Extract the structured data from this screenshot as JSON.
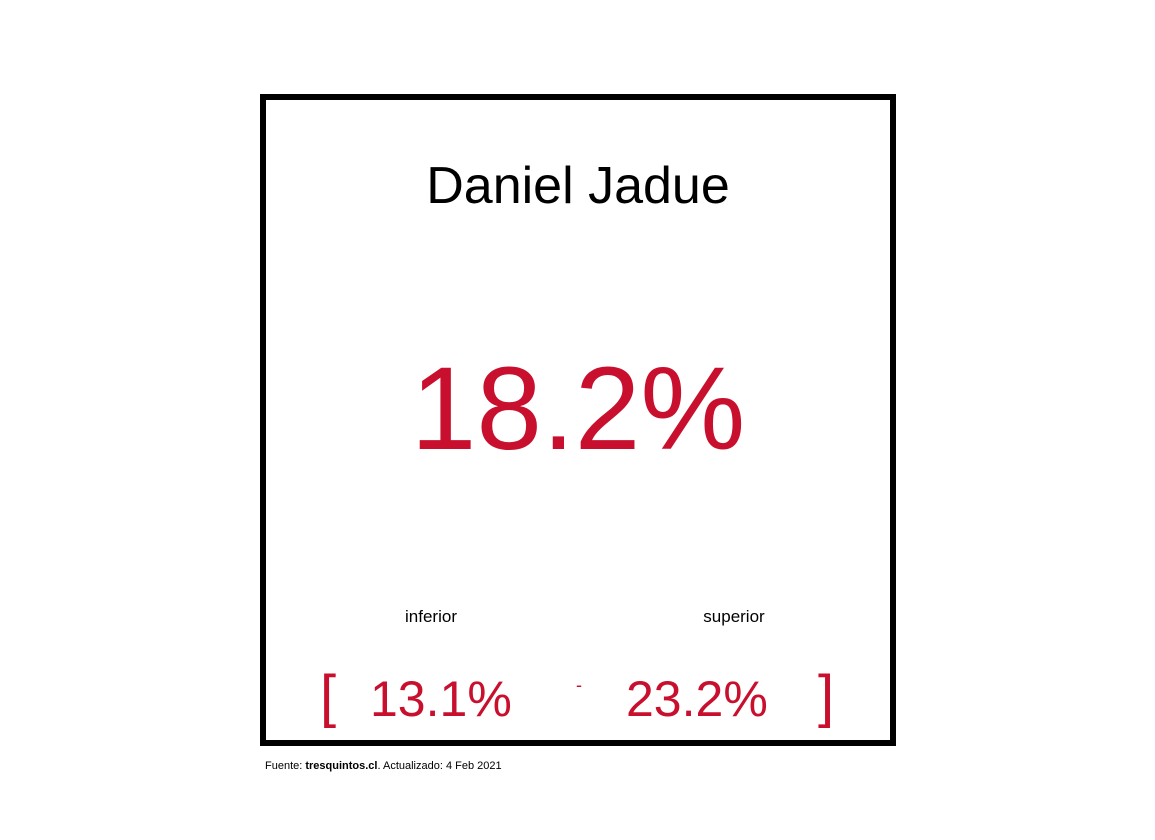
{
  "chart_data": {
    "type": "table",
    "title": "Daniel Jadue",
    "value": "18.2%",
    "lower_label": "inferior",
    "upper_label": "superior",
    "lower_value": "13.1%",
    "upper_value": "23.2%",
    "bracket_open": "[",
    "bracket_close": "]",
    "separator": "-"
  },
  "footer": {
    "prefix": "Fuente: ",
    "source": "tresquintos.cl",
    "suffix": ". Actualizado: 4 Feb 2021"
  },
  "colors": {
    "accent": "#c8102e",
    "text": "#000000",
    "border": "#000000"
  }
}
